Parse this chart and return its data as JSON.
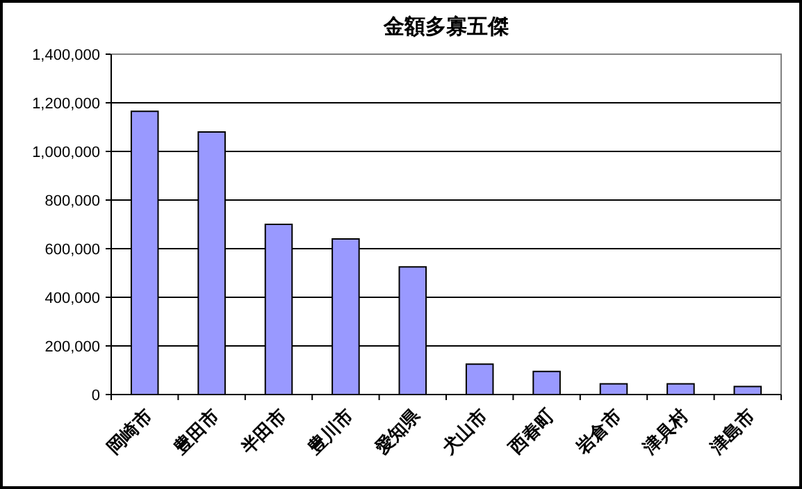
{
  "chart_data": {
    "type": "bar",
    "title": "金額多寡五傑",
    "categories": [
      "岡崎市",
      "豊田市",
      "半田市",
      "豊川市",
      "愛知県",
      "犬山市",
      "西春町",
      "岩倉市",
      "津具村",
      "津島市"
    ],
    "values": [
      1165000,
      1080000,
      700000,
      640000,
      525000,
      125000,
      95000,
      44000,
      44000,
      33000
    ],
    "color": "#9999ff",
    "ylim": [
      0,
      1400000
    ],
    "yticks": [
      {
        "value": 0,
        "label": "0"
      },
      {
        "value": 200000,
        "label": "200,000"
      },
      {
        "value": 400000,
        "label": "400,000"
      },
      {
        "value": 600000,
        "label": "600,000"
      },
      {
        "value": 800000,
        "label": "800,000"
      },
      {
        "value": 1000000,
        "label": "1,000,000"
      },
      {
        "value": 1200000,
        "label": "1,200,000"
      },
      {
        "value": 1400000,
        "label": "1,400,000"
      }
    ],
    "grid": "y"
  }
}
